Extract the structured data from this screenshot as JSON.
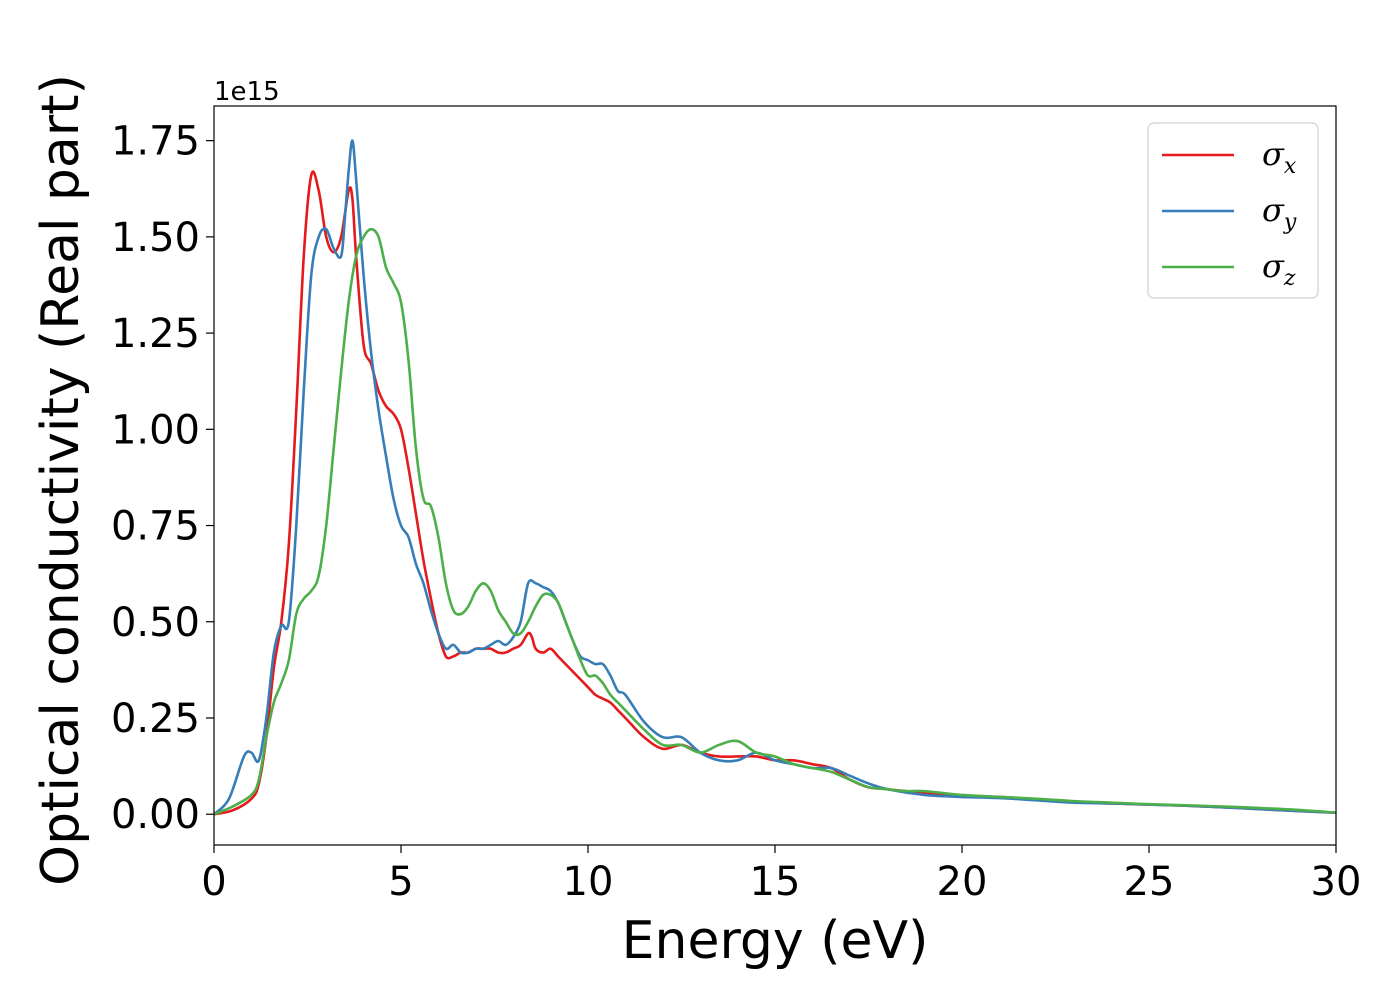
{
  "chart_data": {
    "type": "line",
    "title": "",
    "xlabel": "Energy (eV)",
    "ylabel": "Optical conductivity (Real part)",
    "y_offset_label": "1e15",
    "xlim": [
      0,
      30
    ],
    "ylim": [
      -0.08,
      1.84
    ],
    "x_ticks": [
      0,
      5,
      10,
      15,
      20,
      25,
      30
    ],
    "x_tick_labels": [
      "0",
      "5",
      "10",
      "15",
      "20",
      "25",
      "30"
    ],
    "y_ticks": [
      0.0,
      0.25,
      0.5,
      0.75,
      1.0,
      1.25,
      1.5,
      1.75
    ],
    "y_tick_labels": [
      "0.00",
      "0.25",
      "0.50",
      "0.75",
      "1.00",
      "1.25",
      "1.50",
      "1.75"
    ],
    "grid": false,
    "legend_position": "top-right",
    "series": [
      {
        "name": "σx",
        "symbol": "σ",
        "subscript": "x",
        "color": "#e41a1c",
        "x": [
          0,
          0.5,
          1.0,
          1.2,
          1.4,
          1.6,
          1.8,
          2.0,
          2.2,
          2.4,
          2.6,
          2.8,
          3.0,
          3.2,
          3.4,
          3.6,
          3.7,
          3.8,
          4.0,
          4.2,
          4.4,
          4.6,
          4.8,
          5.0,
          5.2,
          5.4,
          5.6,
          5.8,
          6.0,
          6.2,
          6.4,
          6.6,
          6.8,
          7.0,
          7.2,
          7.4,
          7.6,
          7.8,
          8.0,
          8.2,
          8.4,
          8.5,
          8.6,
          8.8,
          9.0,
          9.2,
          9.4,
          9.6,
          9.8,
          10.0,
          10.2,
          10.4,
          10.6,
          10.8,
          11.0,
          11.5,
          12.0,
          12.5,
          13.0,
          13.5,
          14.0,
          14.5,
          15.0,
          15.5,
          16.0,
          16.5,
          17.0,
          17.5,
          18.0,
          19.0,
          20.0,
          21.0,
          22.0,
          23.0,
          24.0,
          25.0,
          26.0,
          27.0,
          28.0,
          29.0,
          30.0
        ],
        "y": [
          0.0,
          0.01,
          0.04,
          0.08,
          0.2,
          0.38,
          0.5,
          0.7,
          1.05,
          1.45,
          1.66,
          1.62,
          1.5,
          1.46,
          1.5,
          1.62,
          1.6,
          1.45,
          1.22,
          1.17,
          1.1,
          1.06,
          1.04,
          1.0,
          0.9,
          0.78,
          0.66,
          0.56,
          0.47,
          0.41,
          0.41,
          0.42,
          0.42,
          0.43,
          0.43,
          0.43,
          0.42,
          0.42,
          0.43,
          0.44,
          0.47,
          0.46,
          0.43,
          0.42,
          0.43,
          0.41,
          0.39,
          0.37,
          0.35,
          0.33,
          0.31,
          0.3,
          0.29,
          0.27,
          0.25,
          0.2,
          0.17,
          0.18,
          0.16,
          0.15,
          0.15,
          0.15,
          0.14,
          0.14,
          0.13,
          0.12,
          0.09,
          0.07,
          0.065,
          0.055,
          0.045,
          0.045,
          0.038,
          0.032,
          0.028,
          0.025,
          0.022,
          0.018,
          0.013,
          0.008,
          0.004
        ]
      },
      {
        "name": "σy",
        "symbol": "σ",
        "subscript": "y",
        "color": "#377eb8",
        "x": [
          0,
          0.4,
          0.8,
          1.0,
          1.2,
          1.4,
          1.6,
          1.8,
          2.0,
          2.2,
          2.4,
          2.6,
          2.8,
          3.0,
          3.2,
          3.4,
          3.5,
          3.6,
          3.7,
          3.8,
          4.0,
          4.2,
          4.4,
          4.6,
          4.8,
          5.0,
          5.2,
          5.4,
          5.6,
          5.8,
          6.0,
          6.2,
          6.4,
          6.6,
          6.8,
          7.0,
          7.2,
          7.4,
          7.6,
          7.8,
          8.0,
          8.2,
          8.4,
          8.6,
          8.8,
          9.0,
          9.2,
          9.4,
          9.6,
          9.8,
          10.0,
          10.2,
          10.4,
          10.6,
          10.8,
          11.0,
          11.5,
          12.0,
          12.5,
          13.0,
          13.5,
          14.0,
          14.5,
          15.0,
          15.5,
          16.0,
          16.5,
          17.0,
          17.5,
          18.0,
          19.0,
          20.0,
          21.0,
          22.0,
          23.0,
          24.0,
          25.0,
          26.0,
          27.0,
          28.0,
          29.0,
          30.0
        ],
        "y": [
          0.0,
          0.04,
          0.15,
          0.16,
          0.14,
          0.25,
          0.42,
          0.49,
          0.5,
          0.75,
          1.1,
          1.4,
          1.5,
          1.52,
          1.47,
          1.45,
          1.55,
          1.67,
          1.75,
          1.65,
          1.4,
          1.2,
          1.05,
          0.93,
          0.82,
          0.75,
          0.72,
          0.65,
          0.6,
          0.53,
          0.47,
          0.43,
          0.44,
          0.42,
          0.42,
          0.43,
          0.43,
          0.44,
          0.45,
          0.44,
          0.46,
          0.5,
          0.6,
          0.6,
          0.59,
          0.58,
          0.55,
          0.5,
          0.45,
          0.41,
          0.4,
          0.39,
          0.39,
          0.36,
          0.32,
          0.31,
          0.24,
          0.2,
          0.2,
          0.16,
          0.14,
          0.14,
          0.16,
          0.14,
          0.13,
          0.12,
          0.12,
          0.1,
          0.08,
          0.065,
          0.05,
          0.045,
          0.042,
          0.036,
          0.03,
          0.028,
          0.025,
          0.022,
          0.018,
          0.013,
          0.008,
          0.004
        ]
      },
      {
        "name": "σz",
        "symbol": "σ",
        "subscript": "z",
        "color": "#4daf4a",
        "x": [
          0,
          0.5,
          1.0,
          1.2,
          1.4,
          1.6,
          1.8,
          2.0,
          2.2,
          2.4,
          2.6,
          2.8,
          3.0,
          3.2,
          3.4,
          3.6,
          3.8,
          4.0,
          4.2,
          4.4,
          4.6,
          4.8,
          5.0,
          5.2,
          5.4,
          5.6,
          5.8,
          6.0,
          6.2,
          6.4,
          6.6,
          6.8,
          7.0,
          7.2,
          7.4,
          7.6,
          7.8,
          8.0,
          8.2,
          8.4,
          8.6,
          8.8,
          9.0,
          9.2,
          9.4,
          9.6,
          9.8,
          10.0,
          10.2,
          10.4,
          10.6,
          10.8,
          11.0,
          11.5,
          12.0,
          12.5,
          13.0,
          13.5,
          14.0,
          14.5,
          15.0,
          15.5,
          16.0,
          16.5,
          17.0,
          17.5,
          18.0,
          18.5,
          19.0,
          20.0,
          21.0,
          22.0,
          23.0,
          24.0,
          25.0,
          26.0,
          27.0,
          28.0,
          29.0,
          30.0
        ],
        "y": [
          0.0,
          0.02,
          0.05,
          0.09,
          0.2,
          0.29,
          0.34,
          0.4,
          0.52,
          0.56,
          0.58,
          0.62,
          0.75,
          0.95,
          1.15,
          1.33,
          1.45,
          1.5,
          1.52,
          1.5,
          1.42,
          1.38,
          1.33,
          1.18,
          0.95,
          0.82,
          0.8,
          0.72,
          0.6,
          0.53,
          0.52,
          0.54,
          0.58,
          0.6,
          0.58,
          0.53,
          0.5,
          0.47,
          0.47,
          0.5,
          0.54,
          0.57,
          0.57,
          0.55,
          0.5,
          0.45,
          0.4,
          0.36,
          0.36,
          0.34,
          0.31,
          0.29,
          0.27,
          0.22,
          0.18,
          0.18,
          0.16,
          0.18,
          0.19,
          0.16,
          0.15,
          0.13,
          0.12,
          0.11,
          0.09,
          0.07,
          0.065,
          0.06,
          0.06,
          0.05,
          0.045,
          0.04,
          0.034,
          0.03,
          0.026,
          0.023,
          0.02,
          0.016,
          0.011,
          0.004
        ]
      }
    ]
  }
}
